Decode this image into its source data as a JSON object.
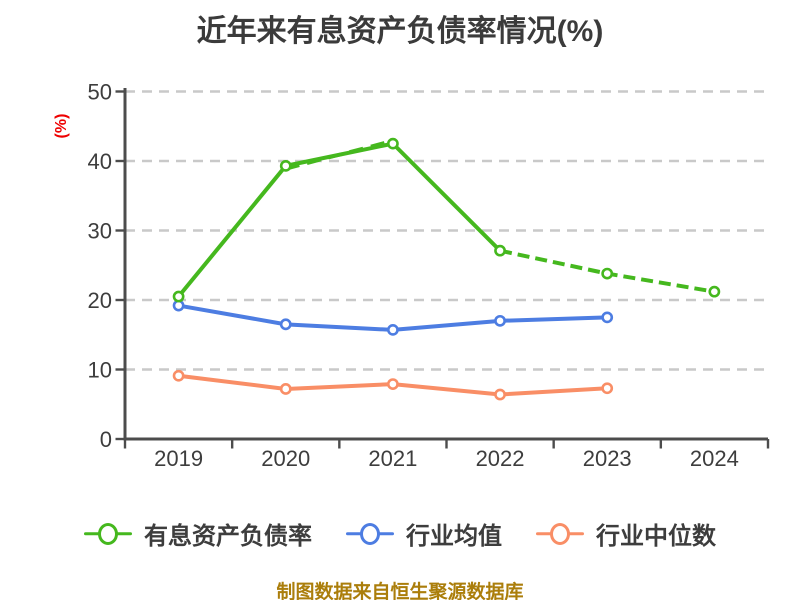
{
  "chart_data": {
    "type": "line",
    "title": "近年来有息资产负债率情况(%)",
    "ylabel": "(%)",
    "caption": "制图数据来自恒生聚源数据库",
    "categories": [
      "2019",
      "2020",
      "2021",
      "2022",
      "2023",
      "2024"
    ],
    "yticks": [
      0,
      10,
      20,
      30,
      40,
      50
    ],
    "ylim": [
      0,
      50
    ],
    "grid": "horizontal-dashed",
    "legend_position": "bottom",
    "series": [
      {
        "key": "interest-bearing-debt-ratio",
        "name": "有息资产负债率",
        "color": "#45b81e",
        "values": [
          20.5,
          39.3,
          42.5,
          27.1,
          23.8,
          21.2
        ],
        "style": "solid-then-dashed",
        "dashed_from_index": 3,
        "dash_overlay_segment": [
          1,
          2
        ],
        "marker": "circle-white-fill"
      },
      {
        "key": "industry-mean",
        "name": "行业均值",
        "color": "#4d7de2",
        "values": [
          19.2,
          16.5,
          15.7,
          17.0,
          17.5,
          null
        ],
        "style": "solid",
        "marker": "circle-white-fill"
      },
      {
        "key": "industry-median",
        "name": "行业中位数",
        "color": "#f98e66",
        "values": [
          9.1,
          7.2,
          7.9,
          6.4,
          7.3,
          null
        ],
        "style": "solid",
        "marker": "circle-white-fill"
      }
    ],
    "colors": {
      "title": "#3b3b3b",
      "ylabel": "#ee0000",
      "caption": "#ab7e0b",
      "axis": "#4c4c4c",
      "grid": "#c9c9c9",
      "tick_label": "#3d3d3d",
      "legend_text": "#3d3d3d",
      "background": "#ffffff"
    }
  }
}
